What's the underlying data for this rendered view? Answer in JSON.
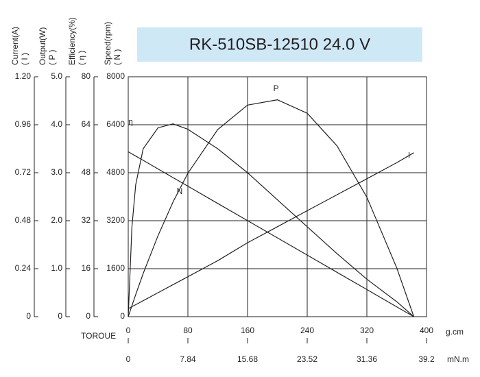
{
  "chart_data": {
    "type": "line",
    "title": "RK-510SB-12510  24.0 V",
    "title_color": "#cfe8f6",
    "x_label": "TOROUE",
    "x_unit": "g.cm",
    "x2_unit": "mN.m",
    "xlim": [
      0,
      400
    ],
    "xticks": [
      0,
      80,
      160,
      240,
      320,
      400
    ],
    "x2lim": [
      0,
      39.2
    ],
    "x2ticks": [
      0,
      7.84,
      15.68,
      23.52,
      31.36,
      39.2
    ],
    "grid": true,
    "axes": [
      {
        "label": "Current(A)",
        "symbol": "( I )",
        "ylim": [
          0,
          1.2
        ],
        "yticks": [
          0,
          {
            "value": 0.24,
            "label": "0.24"
          },
          {
            "value": 0.48,
            "label": "0.48"
          },
          {
            "value": 0.72,
            "label": "0.72"
          },
          {
            "value": 0.96,
            "label": "0.96"
          },
          {
            "value": 1.2,
            "label": "1.20"
          }
        ]
      },
      {
        "label": "Output(W)",
        "symbol": "( P )",
        "ylim": [
          0,
          5
        ],
        "yticks": [
          0,
          {
            "value": 1,
            "label": "1.0"
          },
          {
            "value": 2,
            "label": "2.0"
          },
          {
            "value": 3,
            "label": "3.0"
          },
          {
            "value": 4,
            "label": "4.0"
          },
          {
            "value": 5,
            "label": "5.0"
          }
        ]
      },
      {
        "label": "Efficiency(%)",
        "symbol": "( η )",
        "ylim": [
          0,
          80
        ],
        "yticks": [
          0,
          16,
          32,
          48,
          64,
          80
        ]
      },
      {
        "label": "Speed(rpm)",
        "symbol": "( N )",
        "ylim": [
          0,
          8000
        ],
        "yticks": [
          0,
          1600,
          3200,
          4800,
          6400,
          8000
        ]
      }
    ],
    "x": [
      0,
      5,
      10,
      20,
      40,
      60,
      80,
      120,
      160,
      200,
      240,
      280,
      320,
      360,
      383
    ],
    "series": [
      {
        "name": "N",
        "color": "#231f20",
        "axis": 3,
        "values": [
          5500,
          5428,
          5356,
          5213,
          4926,
          4638,
          4351,
          3777,
          3202,
          2628,
          2054,
          1479,
          905,
          330,
          0
        ]
      },
      {
        "name": "I",
        "color": "#231f20",
        "axis": 0,
        "values": [
          0.04,
          0.05,
          0.06,
          0.08,
          0.12,
          0.16,
          0.2,
          0.28,
          0.37,
          0.45,
          0.53,
          0.61,
          0.69,
          0.77,
          0.82
        ]
      },
      {
        "name": "P",
        "color": "#231f20",
        "axis": 1,
        "values": [
          0,
          0.23,
          0.46,
          0.9,
          1.69,
          2.39,
          2.99,
          3.9,
          4.41,
          4.52,
          4.24,
          3.56,
          2.49,
          1.02,
          0
        ]
      },
      {
        "name": "η",
        "color": "#231f20",
        "axis": 2,
        "values": [
          0,
          30,
          44,
          56,
          63,
          64.3,
          62.5,
          56,
          48,
          39,
          30,
          21,
          12.5,
          5,
          0
        ]
      }
    ]
  }
}
